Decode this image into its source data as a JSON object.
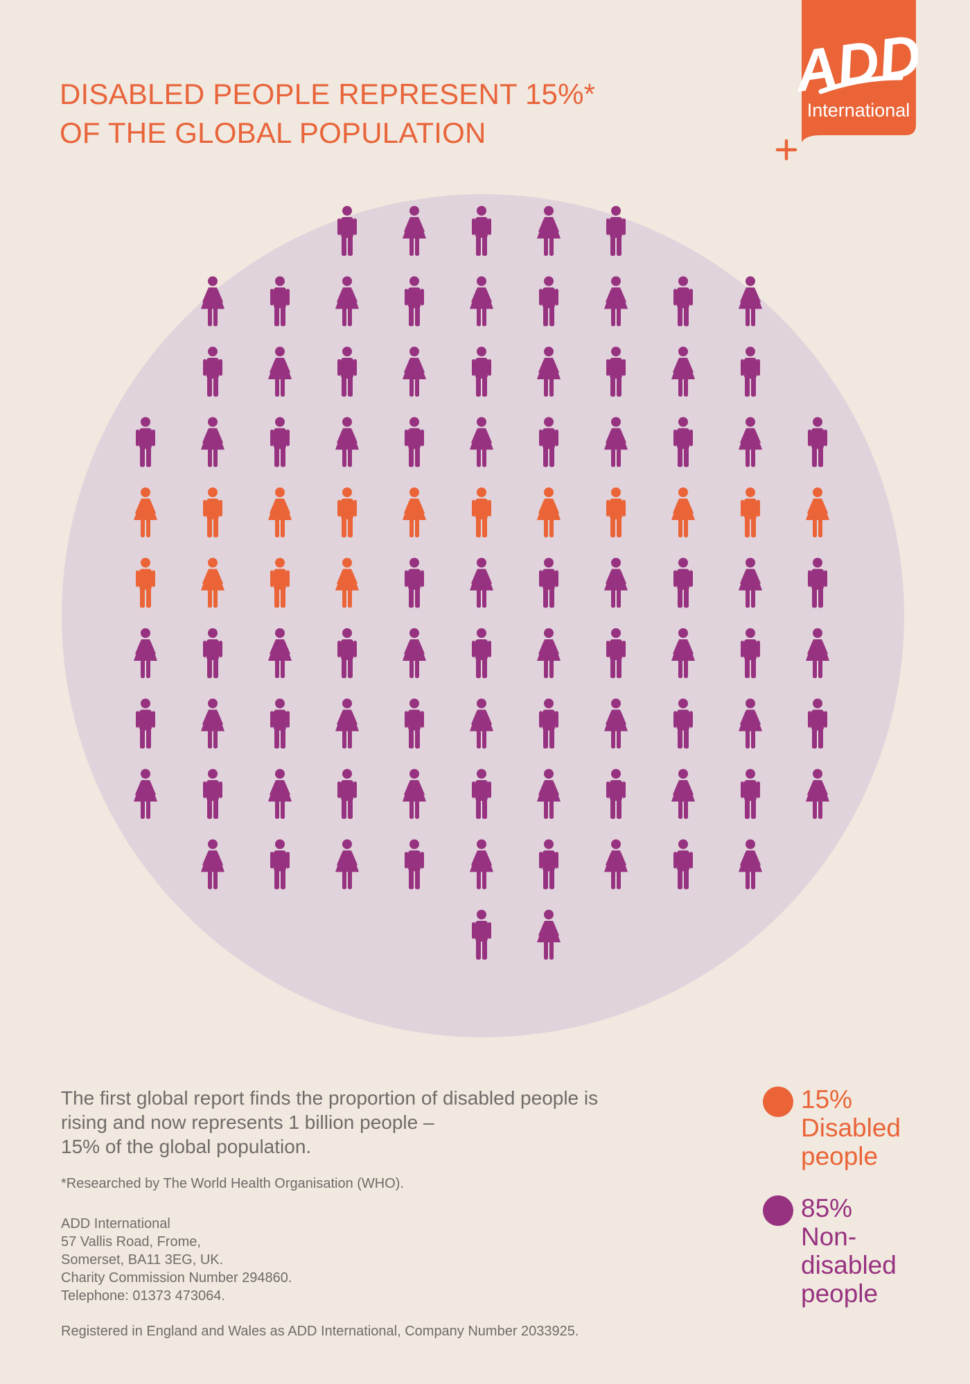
{
  "title": {
    "line1": "DISABLED PEOPLE REPRESENT 15%*",
    "line2": "OF THE GLOBAL POPULATION"
  },
  "logo": {
    "wordmark": "ADD",
    "subtitle": "International",
    "colors": {
      "background": "#ea6437",
      "text": "#ffffff"
    }
  },
  "colors": {
    "disabled": "#ea6437",
    "non_disabled": "#973280",
    "circle": "#e1d3dc",
    "text": "#6f6b69",
    "background": "#f1e8df"
  },
  "chart_data": {
    "type": "pictograph",
    "total_figures": 100,
    "rows": [
      5,
      9,
      9,
      11,
      11,
      11,
      11,
      11,
      11,
      9,
      2
    ],
    "series": [
      {
        "name": "Disabled people",
        "value": 15,
        "unit": "%",
        "figures": 15,
        "color": "#ea6437"
      },
      {
        "name": "Non-disabled people",
        "value": 85,
        "unit": "%",
        "figures": 85,
        "color": "#973280"
      }
    ]
  },
  "legend": [
    {
      "value": "15%",
      "label": "Disabled\npeople",
      "color": "#ea6437"
    },
    {
      "value": "85%",
      "label": "Non-\ndisabled\npeople",
      "color": "#973280"
    }
  ],
  "body": {
    "line1": "The first global report finds the proportion of disabled people is",
    "line2": "rising and now represents 1 billion people –",
    "line3": "15% of the global population."
  },
  "footnote": "*Researched by The World Health Organisation (WHO).",
  "address": {
    "org": "ADD International",
    "street": "57 Vallis Road, Frome,",
    "region": "Somerset, BA11 3EG, UK.",
    "charity": "Charity Commission Number 294860.",
    "phone": "Telephone: 01373 473064."
  },
  "registered": "Registered in England and Wales as ADD International, Company Number 2033925."
}
